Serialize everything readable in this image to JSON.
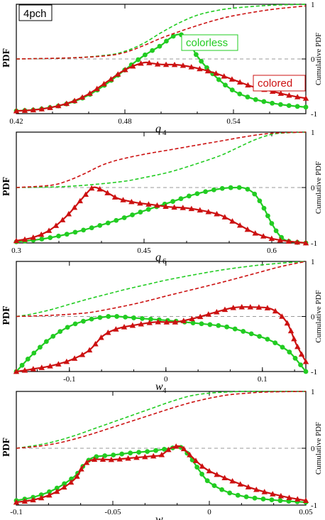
{
  "figure_tag": "4pch",
  "legend": {
    "colorless": "colorless",
    "colored": "colored"
  },
  "colors": {
    "colorless": "#22cc22",
    "colored": "#cc1111",
    "zero_line": "#999999"
  },
  "chart_data": [
    {
      "type": "line",
      "x_symbol": "q",
      "x_sub": "4",
      "ylabel_left": "PDF",
      "ylabel_right": "Cumulative PDF",
      "xlim": [
        0.42,
        0.58
      ],
      "xticks": [
        "0.42",
        "0.48",
        "0.54"
      ],
      "xtick_values": [
        0.42,
        0.48,
        0.54
      ],
      "right_ticks": [
        "1",
        "0",
        "-1"
      ],
      "series": [
        {
          "name": "colorless",
          "kind": "pdf",
          "marker": "circle",
          "x": [
            0.42,
            0.43,
            0.44,
            0.45,
            0.46,
            0.47,
            0.48,
            0.49,
            0.5,
            0.505,
            0.51,
            0.515,
            0.52,
            0.53,
            0.54,
            0.55,
            0.56,
            0.57,
            0.58
          ],
          "y": [
            -0.95,
            -0.93,
            -0.88,
            -0.8,
            -0.66,
            -0.45,
            -0.2,
            0.05,
            0.25,
            0.38,
            0.45,
            0.35,
            0.05,
            -0.32,
            -0.58,
            -0.72,
            -0.8,
            -0.85,
            -0.88
          ]
        },
        {
          "name": "colored",
          "kind": "pdf",
          "marker": "triangle",
          "x": [
            0.42,
            0.43,
            0.44,
            0.45,
            0.46,
            0.47,
            0.48,
            0.49,
            0.495,
            0.5,
            0.51,
            0.52,
            0.53,
            0.54,
            0.55,
            0.56,
            0.57,
            0.58
          ],
          "y": [
            -0.95,
            -0.93,
            -0.88,
            -0.79,
            -0.64,
            -0.42,
            -0.2,
            -0.07,
            -0.08,
            -0.1,
            -0.11,
            -0.17,
            -0.26,
            -0.38,
            -0.5,
            -0.58,
            -0.66,
            -0.72
          ]
        },
        {
          "name": "colorless cumulative",
          "kind": "cumulative",
          "dash": true,
          "x": [
            0.42,
            0.45,
            0.47,
            0.48,
            0.49,
            0.5,
            0.51,
            0.52,
            0.53,
            0.54,
            0.56,
            0.58
          ],
          "y": [
            0.0,
            0.02,
            0.07,
            0.14,
            0.28,
            0.48,
            0.66,
            0.8,
            0.88,
            0.93,
            0.98,
            1.0
          ]
        },
        {
          "name": "colored cumulative",
          "kind": "cumulative",
          "dash": true,
          "x": [
            0.42,
            0.45,
            0.47,
            0.48,
            0.49,
            0.5,
            0.51,
            0.52,
            0.53,
            0.54,
            0.56,
            0.58
          ],
          "y": [
            0.0,
            0.02,
            0.06,
            0.12,
            0.24,
            0.38,
            0.5,
            0.61,
            0.71,
            0.79,
            0.9,
            0.97
          ]
        }
      ]
    },
    {
      "type": "line",
      "x_symbol": "q",
      "x_sub": "6",
      "ylabel_left": "PDF",
      "ylabel_right": "Cumulative PDF",
      "xlim": [
        0.3,
        0.64
      ],
      "xticks": [
        "0.3",
        "0.45",
        "0.6"
      ],
      "xtick_values": [
        0.3,
        0.45,
        0.6
      ],
      "right_ticks": [
        "1",
        "0",
        "-1"
      ],
      "series": [
        {
          "name": "colorless",
          "kind": "pdf",
          "marker": "circle",
          "x": [
            0.3,
            0.33,
            0.36,
            0.39,
            0.42,
            0.45,
            0.48,
            0.51,
            0.54,
            0.56,
            0.57,
            0.58,
            0.59,
            0.6,
            0.61,
            0.62,
            0.64
          ],
          "y": [
            -0.98,
            -0.93,
            -0.84,
            -0.72,
            -0.58,
            -0.42,
            -0.27,
            -0.12,
            -0.02,
            0.0,
            -0.02,
            -0.12,
            -0.35,
            -0.65,
            -0.88,
            -0.97,
            -1.0
          ]
        },
        {
          "name": "colored",
          "kind": "pdf",
          "marker": "triangle",
          "x": [
            0.3,
            0.32,
            0.34,
            0.36,
            0.38,
            0.39,
            0.4,
            0.41,
            0.42,
            0.44,
            0.46,
            0.48,
            0.5,
            0.52,
            0.54,
            0.56,
            0.58,
            0.6,
            0.62,
            0.64
          ],
          "y": [
            -0.96,
            -0.9,
            -0.76,
            -0.5,
            -0.15,
            0.0,
            -0.04,
            -0.12,
            -0.2,
            -0.27,
            -0.31,
            -0.35,
            -0.37,
            -0.42,
            -0.5,
            -0.66,
            -0.82,
            -0.92,
            -0.97,
            -1.0
          ]
        },
        {
          "name": "colorless cumulative",
          "kind": "cumulative",
          "dash": true,
          "x": [
            0.3,
            0.36,
            0.42,
            0.45,
            0.48,
            0.51,
            0.54,
            0.56,
            0.58,
            0.6,
            0.62,
            0.64
          ],
          "y": [
            0.0,
            0.02,
            0.1,
            0.18,
            0.28,
            0.42,
            0.58,
            0.72,
            0.86,
            0.96,
            0.99,
            1.0
          ]
        },
        {
          "name": "colored cumulative",
          "kind": "cumulative",
          "dash": true,
          "x": [
            0.3,
            0.34,
            0.36,
            0.38,
            0.4,
            0.42,
            0.45,
            0.48,
            0.51,
            0.54,
            0.57,
            0.6,
            0.64
          ],
          "y": [
            0.0,
            0.04,
            0.12,
            0.25,
            0.4,
            0.5,
            0.6,
            0.68,
            0.76,
            0.84,
            0.92,
            0.98,
            1.0
          ]
        }
      ]
    },
    {
      "type": "line",
      "x_symbol": "w",
      "x_sub": "4",
      "ylabel_left": "PDF",
      "ylabel_right": "Cumulative PDF",
      "xlim": [
        -0.155,
        0.145
      ],
      "xticks": [
        "-0.1",
        "0",
        "0.1"
      ],
      "xtick_values": [
        -0.1,
        0,
        0.1
      ],
      "right_ticks": [
        "1",
        "0",
        "-1"
      ],
      "series": [
        {
          "name": "colorless",
          "kind": "pdf",
          "marker": "circle",
          "x": [
            -0.155,
            -0.14,
            -0.12,
            -0.1,
            -0.08,
            -0.06,
            -0.05,
            -0.03,
            0.0,
            0.03,
            0.06,
            0.08,
            0.1,
            0.11,
            0.12,
            0.13,
            0.145
          ],
          "y": [
            -1.0,
            -0.72,
            -0.4,
            -0.18,
            -0.06,
            0.0,
            0.0,
            -0.03,
            -0.07,
            -0.12,
            -0.18,
            -0.27,
            -0.38,
            -0.45,
            -0.55,
            -0.68,
            -1.0
          ]
        },
        {
          "name": "colored",
          "kind": "pdf",
          "marker": "triangle",
          "x": [
            -0.155,
            -0.14,
            -0.12,
            -0.1,
            -0.08,
            -0.065,
            -0.05,
            -0.03,
            -0.01,
            0.01,
            0.03,
            0.05,
            0.07,
            0.09,
            0.11,
            0.125,
            0.135,
            0.145
          ],
          "y": [
            -1.0,
            -0.96,
            -0.9,
            -0.8,
            -0.62,
            -0.35,
            -0.22,
            -0.15,
            -0.1,
            -0.1,
            -0.03,
            0.07,
            0.16,
            0.17,
            0.13,
            -0.1,
            -0.5,
            -0.82
          ]
        },
        {
          "name": "colorless cumulative",
          "kind": "cumulative",
          "dash": true,
          "x": [
            -0.155,
            -0.14,
            -0.12,
            -0.1,
            -0.08,
            -0.06,
            -0.04,
            -0.02,
            0.0,
            0.03,
            0.06,
            0.09,
            0.12,
            0.145
          ],
          "y": [
            0.0,
            0.04,
            0.12,
            0.22,
            0.32,
            0.41,
            0.5,
            0.58,
            0.66,
            0.76,
            0.85,
            0.92,
            0.97,
            1.0
          ]
        },
        {
          "name": "colored cumulative",
          "kind": "cumulative",
          "dash": true,
          "x": [
            -0.155,
            -0.12,
            -0.1,
            -0.08,
            -0.06,
            -0.04,
            -0.02,
            0.0,
            0.03,
            0.06,
            0.09,
            0.12,
            0.145
          ],
          "y": [
            0.0,
            0.02,
            0.04,
            0.07,
            0.13,
            0.2,
            0.28,
            0.37,
            0.5,
            0.63,
            0.77,
            0.91,
            1.0
          ]
        }
      ]
    },
    {
      "type": "line",
      "x_symbol": "w",
      "x_sub": "6",
      "ylabel_left": "PDF",
      "ylabel_right": "Cumulative PDF",
      "xlim": [
        -0.1,
        0.05
      ],
      "xticks": [
        "-0.1",
        "-0.05",
        "0",
        "0.05"
      ],
      "xtick_values": [
        -0.1,
        -0.05,
        0,
        0.05
      ],
      "right_ticks": [
        "1",
        "0",
        "-1"
      ],
      "series": [
        {
          "name": "colorless",
          "kind": "pdf",
          "marker": "circle",
          "x": [
            -0.1,
            -0.09,
            -0.08,
            -0.07,
            -0.065,
            -0.06,
            -0.05,
            -0.04,
            -0.03,
            -0.02,
            -0.015,
            -0.01,
            -0.005,
            0.0,
            0.01,
            0.02,
            0.03,
            0.04,
            0.05
          ],
          "y": [
            -0.92,
            -0.85,
            -0.72,
            -0.5,
            -0.3,
            -0.16,
            -0.12,
            -0.08,
            -0.05,
            0.0,
            0.02,
            -0.15,
            -0.4,
            -0.6,
            -0.78,
            -0.86,
            -0.9,
            -0.93,
            -0.95
          ]
        },
        {
          "name": "colored",
          "kind": "pdf",
          "marker": "triangle",
          "x": [
            -0.1,
            -0.09,
            -0.08,
            -0.07,
            -0.065,
            -0.06,
            -0.05,
            -0.04,
            -0.03,
            -0.025,
            -0.02,
            -0.015,
            -0.01,
            -0.005,
            0.0,
            0.01,
            0.02,
            0.03,
            0.04,
            0.05
          ],
          "y": [
            -0.95,
            -0.9,
            -0.78,
            -0.55,
            -0.3,
            -0.2,
            -0.2,
            -0.17,
            -0.14,
            -0.12,
            0.0,
            0.03,
            -0.12,
            -0.28,
            -0.4,
            -0.55,
            -0.68,
            -0.78,
            -0.86,
            -0.92
          ]
        },
        {
          "name": "colorless cumulative",
          "kind": "cumulative",
          "dash": true,
          "x": [
            -0.1,
            -0.09,
            -0.08,
            -0.07,
            -0.06,
            -0.05,
            -0.04,
            -0.03,
            -0.02,
            -0.01,
            0.0,
            0.01,
            0.02,
            0.05
          ],
          "y": [
            0.0,
            0.05,
            0.12,
            0.22,
            0.34,
            0.46,
            0.58,
            0.7,
            0.82,
            0.92,
            0.97,
            0.99,
            1.0,
            1.0
          ]
        },
        {
          "name": "colored cumulative",
          "kind": "cumulative",
          "dash": true,
          "x": [
            -0.1,
            -0.09,
            -0.08,
            -0.07,
            -0.06,
            -0.05,
            -0.04,
            -0.03,
            -0.02,
            -0.01,
            0.0,
            0.01,
            0.02,
            0.03,
            0.05
          ],
          "y": [
            0.0,
            0.03,
            0.08,
            0.16,
            0.26,
            0.37,
            0.48,
            0.59,
            0.7,
            0.8,
            0.88,
            0.94,
            0.97,
            0.99,
            1.0
          ]
        }
      ]
    }
  ]
}
